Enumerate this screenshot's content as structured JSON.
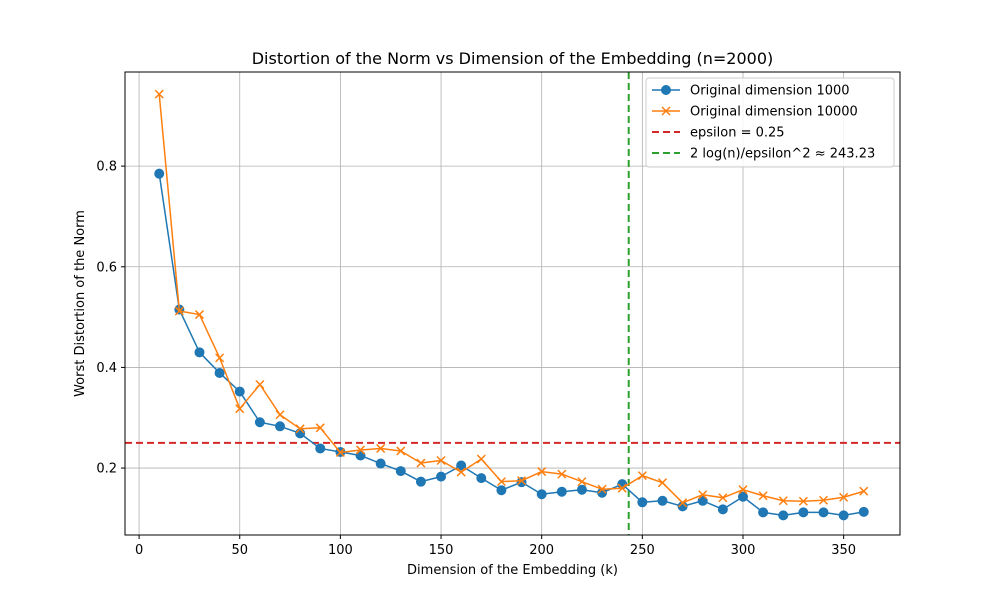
{
  "chart_data": {
    "type": "line",
    "title": "Distortion of the Norm vs Dimension of the Embedding (n=2000)",
    "xlabel": "Dimension of the Embedding (k)",
    "ylabel": "Worst Distortion of the Norm",
    "xlim": [
      -7,
      378
    ],
    "ylim": [
      0.067,
      0.987
    ],
    "xticks": [
      0,
      50,
      100,
      150,
      200,
      250,
      300,
      350
    ],
    "yticks": [
      0.2,
      0.4,
      0.6,
      0.8
    ],
    "grid": true,
    "legend_position": "top-right",
    "x": [
      10,
      20,
      30,
      40,
      50,
      60,
      70,
      80,
      90,
      100,
      110,
      120,
      130,
      140,
      150,
      160,
      170,
      180,
      190,
      200,
      210,
      220,
      230,
      240,
      250,
      260,
      270,
      280,
      290,
      300,
      310,
      320,
      330,
      340,
      350,
      360
    ],
    "series": [
      {
        "name": "Original dimension 1000",
        "color": "#1f77b4",
        "marker": "circle",
        "values": [
          0.785,
          0.515,
          0.43,
          0.389,
          0.352,
          0.291,
          0.283,
          0.269,
          0.239,
          0.232,
          0.225,
          0.209,
          0.194,
          0.173,
          0.183,
          0.205,
          0.18,
          0.156,
          0.172,
          0.148,
          0.153,
          0.157,
          0.151,
          0.168,
          0.132,
          0.135,
          0.124,
          0.135,
          0.118,
          0.143,
          0.112,
          0.106,
          0.112,
          0.112,
          0.106,
          0.113
        ]
      },
      {
        "name": "Original dimension 10000",
        "color": "#ff7f0e",
        "marker": "x",
        "values": [
          0.943,
          0.512,
          0.505,
          0.419,
          0.318,
          0.366,
          0.306,
          0.278,
          0.28,
          0.231,
          0.236,
          0.239,
          0.234,
          0.21,
          0.215,
          0.192,
          0.218,
          0.173,
          0.175,
          0.193,
          0.188,
          0.173,
          0.158,
          0.16,
          0.185,
          0.171,
          0.131,
          0.147,
          0.141,
          0.157,
          0.145,
          0.135,
          0.134,
          0.136,
          0.142,
          0.154
        ]
      }
    ],
    "reference_lines": [
      {
        "orientation": "horizontal",
        "value": 0.25,
        "label": "epsilon = 0.25",
        "color": "#d62728",
        "style": "dashed"
      },
      {
        "orientation": "vertical",
        "value": 243.23,
        "label": "2 log(n)/epsilon^2 ≈ 243.23",
        "color": "#2ca02c",
        "style": "dashed"
      }
    ]
  }
}
